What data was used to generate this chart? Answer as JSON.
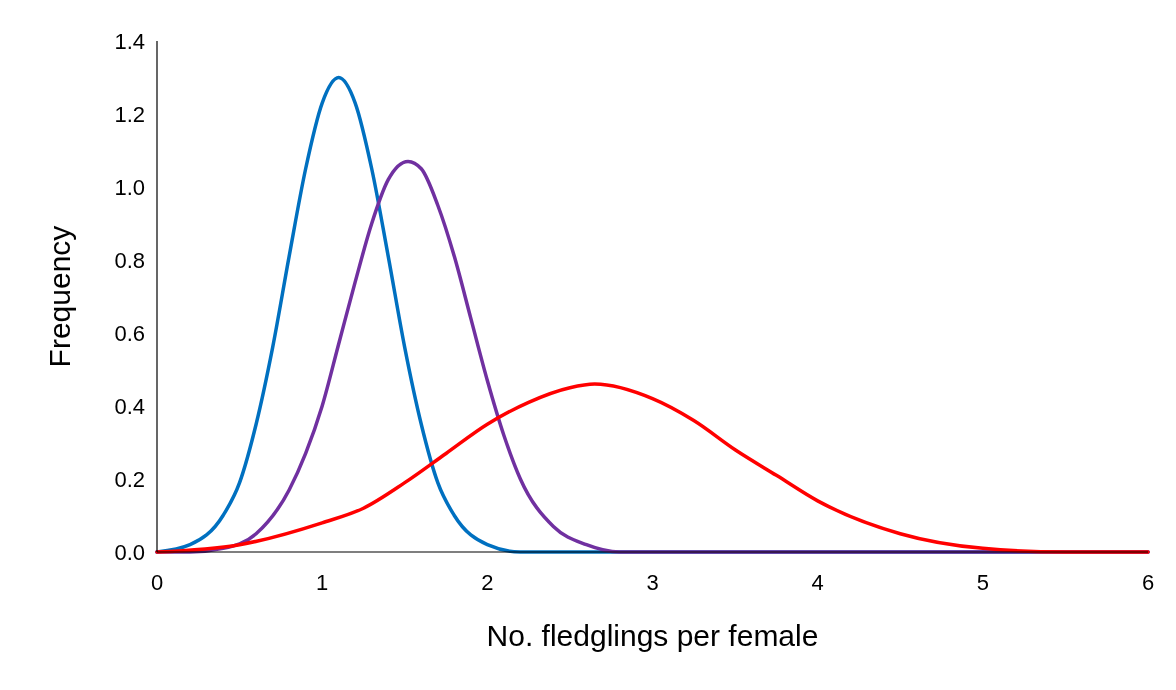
{
  "chart_data": {
    "type": "line",
    "xlabel": "No. fledglings per female",
    "ylabel": "Frequency",
    "xlim": [
      0,
      6
    ],
    "ylim": [
      0,
      1.4
    ],
    "xticks": [
      0,
      1,
      2,
      3,
      4,
      5,
      6
    ],
    "yticks": [
      {
        "value": 0,
        "label": "0.0"
      },
      {
        "value": 0.2,
        "label": "0.2"
      },
      {
        "value": 0.4,
        "label": "0.4"
      },
      {
        "value": 0.6,
        "label": "0.6"
      },
      {
        "value": 0.8,
        "label": "0.8"
      },
      {
        "value": 1,
        "label": "1.0"
      },
      {
        "value": 1.2,
        "label": "1.2"
      },
      {
        "value": 1.4,
        "label": "1.4"
      }
    ],
    "grid": false,
    "marker": "none",
    "line_style": "solid",
    "series": [
      {
        "color": "#0070c0",
        "x": [
          0,
          0.2,
          0.4,
          0.5,
          0.6,
          0.7,
          0.8,
          0.9,
          1.0,
          1.1,
          1.2,
          1.3,
          1.4,
          1.5,
          1.6,
          1.7,
          1.8,
          2.0,
          2.2,
          2.5,
          6
        ],
        "values": [
          0,
          0.02,
          0.1,
          0.19,
          0.35,
          0.56,
          0.81,
          1.05,
          1.23,
          1.3,
          1.23,
          1.05,
          0.81,
          0.56,
          0.35,
          0.19,
          0.1,
          0.02,
          0,
          0,
          0
        ]
      },
      {
        "color": "#7030a0",
        "x": [
          0,
          0.2,
          0.4,
          0.6,
          0.8,
          0.9,
          1.0,
          1.1,
          1.2,
          1.3,
          1.4,
          1.52,
          1.6,
          1.7,
          1.8,
          1.9,
          2.0,
          2.1,
          2.2,
          2.4,
          2.6,
          2.8,
          3,
          6
        ],
        "values": [
          0,
          0,
          0.01,
          0.05,
          0.17,
          0.27,
          0.4,
          0.57,
          0.74,
          0.9,
          1.02,
          1.07,
          1.05,
          0.95,
          0.81,
          0.64,
          0.47,
          0.32,
          0.2,
          0.07,
          0.02,
          0,
          0,
          0
        ]
      },
      {
        "color": "#ff0000",
        "x": [
          0,
          0.5,
          1.0,
          1.25,
          1.5,
          1.75,
          2.0,
          2.25,
          2.5,
          2.65,
          3.0,
          3.25,
          3.5,
          3.75,
          4.0,
          4.5,
          5.0,
          5.5,
          6
        ],
        "values": [
          0,
          0.02,
          0.08,
          0.12,
          0.19,
          0.27,
          0.35,
          0.41,
          0.45,
          0.46,
          0.42,
          0.36,
          0.28,
          0.21,
          0.14,
          0.05,
          0.01,
          0,
          0
        ]
      }
    ]
  }
}
